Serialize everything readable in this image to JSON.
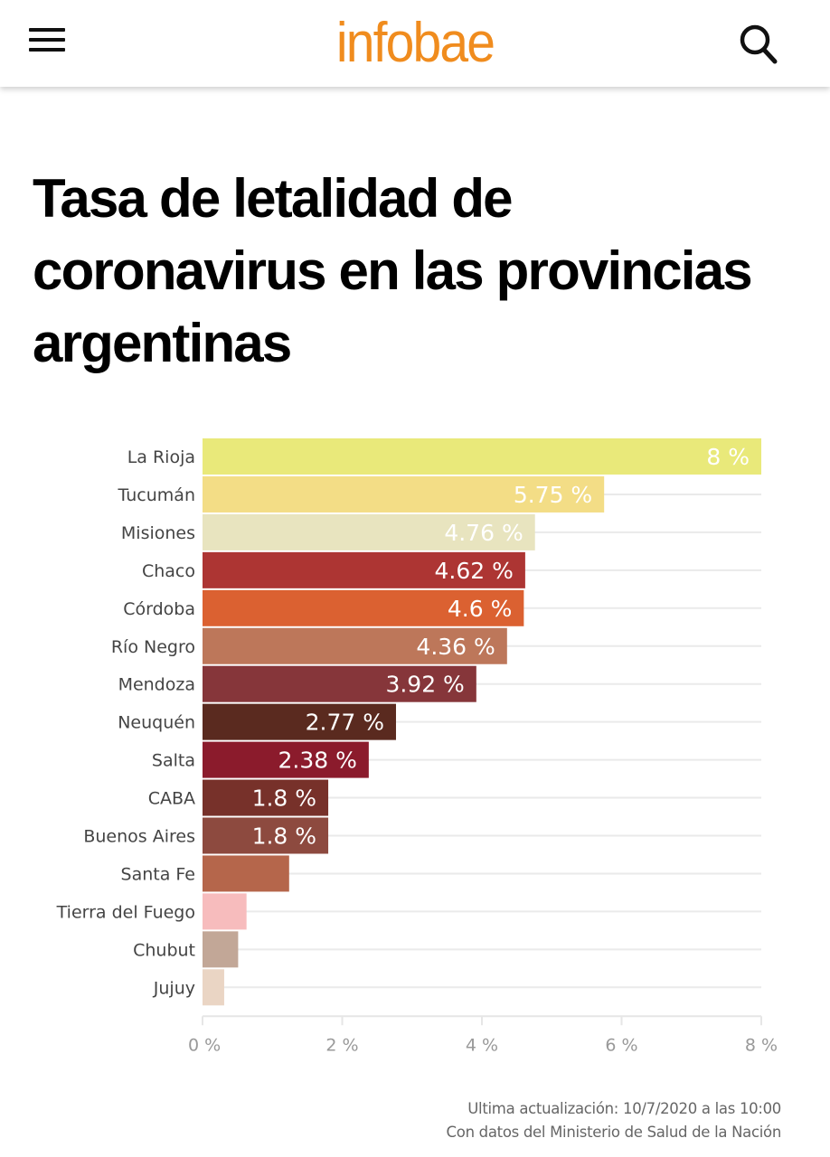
{
  "header": {
    "logo_text": "infobae",
    "menu_icon": "hamburger-menu-icon",
    "search_icon": "search-icon",
    "brand_color": "#f08c1e"
  },
  "article": {
    "title": "Tasa de letalidad de coronavirus en las provincias argentinas"
  },
  "chart_data": {
    "type": "bar",
    "orientation": "horizontal",
    "title": "Tasa de letalidad de coronavirus en las provincias argentinas",
    "xlabel": "",
    "ylabel": "",
    "xlim": [
      0,
      8
    ],
    "x_ticks": [
      0,
      2,
      4,
      6,
      8
    ],
    "x_tick_labels": [
      "0 %",
      "2 %",
      "4 %",
      "6 %",
      "8 %"
    ],
    "grid": true,
    "legend": "none",
    "unit_suffix": " %",
    "categories": [
      "La Rioja",
      "Tucumán",
      "Misiones",
      "Chaco",
      "Córdoba",
      "Río Negro",
      "Mendoza",
      "Neuquén",
      "Salta",
      "CABA",
      "Buenos Aires",
      "Santa Fe",
      "Tierra del Fuego",
      "Chubut",
      "Jujuy"
    ],
    "values": [
      8,
      5.75,
      4.76,
      4.62,
      4.6,
      4.36,
      3.92,
      2.77,
      2.38,
      1.8,
      1.8,
      1.24,
      0.63,
      0.51,
      0.31
    ],
    "data_labels": [
      "8 %",
      "5.75 %",
      "4.76 %",
      "4.62 %",
      "4.6 %",
      "4.36 %",
      "3.92 %",
      "2.77 %",
      "2.38 %",
      "1.8 %",
      "1.8 %",
      "",
      "",
      "",
      ""
    ],
    "colors": [
      "#e9e97a",
      "#f3dd86",
      "#e8e4bf",
      "#ad3533",
      "#db6131",
      "#bd775a",
      "#86363a",
      "#5a2a1f",
      "#8b1b2c",
      "#77312a",
      "#8d4a3f",
      "#b5664b",
      "#f7bcbd",
      "#c2a797",
      "#ead5c4"
    ]
  },
  "footer": {
    "updated": "Ultima actualización: 10/7/2020 a las 10:00",
    "source": "Con datos del Ministerio de Salud de la Nación"
  }
}
